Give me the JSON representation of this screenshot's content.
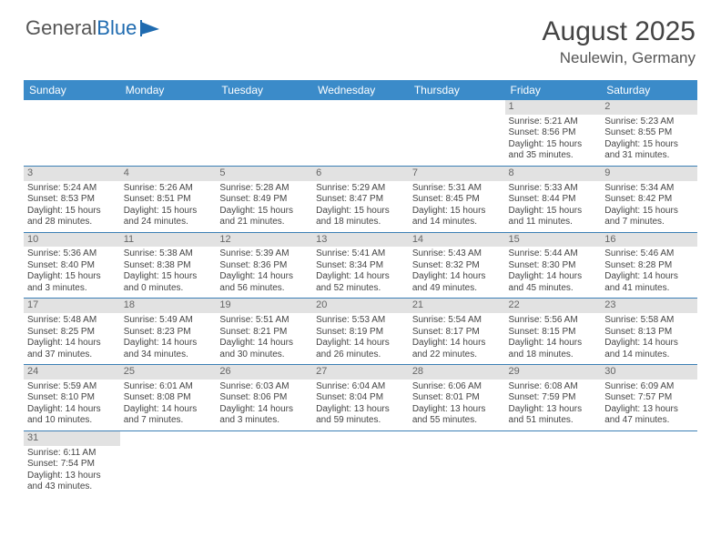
{
  "logo": {
    "part1": "General",
    "part2": "Blue"
  },
  "title": "August 2025",
  "location": "Neulewin, Germany",
  "colors": {
    "header_bg": "#3b8bc9",
    "header_text": "#ffffff",
    "daynum_bg": "#e2e2e2",
    "row_divider": "#3b7fb5",
    "logo_blue": "#1f6bb0"
  },
  "day_headers": [
    "Sunday",
    "Monday",
    "Tuesday",
    "Wednesday",
    "Thursday",
    "Friday",
    "Saturday"
  ],
  "weeks": [
    [
      null,
      null,
      null,
      null,
      null,
      {
        "n": "1",
        "sr": "Sunrise: 5:21 AM",
        "ss": "Sunset: 8:56 PM",
        "d1": "Daylight: 15 hours",
        "d2": "and 35 minutes."
      },
      {
        "n": "2",
        "sr": "Sunrise: 5:23 AM",
        "ss": "Sunset: 8:55 PM",
        "d1": "Daylight: 15 hours",
        "d2": "and 31 minutes."
      }
    ],
    [
      {
        "n": "3",
        "sr": "Sunrise: 5:24 AM",
        "ss": "Sunset: 8:53 PM",
        "d1": "Daylight: 15 hours",
        "d2": "and 28 minutes."
      },
      {
        "n": "4",
        "sr": "Sunrise: 5:26 AM",
        "ss": "Sunset: 8:51 PM",
        "d1": "Daylight: 15 hours",
        "d2": "and 24 minutes."
      },
      {
        "n": "5",
        "sr": "Sunrise: 5:28 AM",
        "ss": "Sunset: 8:49 PM",
        "d1": "Daylight: 15 hours",
        "d2": "and 21 minutes."
      },
      {
        "n": "6",
        "sr": "Sunrise: 5:29 AM",
        "ss": "Sunset: 8:47 PM",
        "d1": "Daylight: 15 hours",
        "d2": "and 18 minutes."
      },
      {
        "n": "7",
        "sr": "Sunrise: 5:31 AM",
        "ss": "Sunset: 8:45 PM",
        "d1": "Daylight: 15 hours",
        "d2": "and 14 minutes."
      },
      {
        "n": "8",
        "sr": "Sunrise: 5:33 AM",
        "ss": "Sunset: 8:44 PM",
        "d1": "Daylight: 15 hours",
        "d2": "and 11 minutes."
      },
      {
        "n": "9",
        "sr": "Sunrise: 5:34 AM",
        "ss": "Sunset: 8:42 PM",
        "d1": "Daylight: 15 hours",
        "d2": "and 7 minutes."
      }
    ],
    [
      {
        "n": "10",
        "sr": "Sunrise: 5:36 AM",
        "ss": "Sunset: 8:40 PM",
        "d1": "Daylight: 15 hours",
        "d2": "and 3 minutes."
      },
      {
        "n": "11",
        "sr": "Sunrise: 5:38 AM",
        "ss": "Sunset: 8:38 PM",
        "d1": "Daylight: 15 hours",
        "d2": "and 0 minutes."
      },
      {
        "n": "12",
        "sr": "Sunrise: 5:39 AM",
        "ss": "Sunset: 8:36 PM",
        "d1": "Daylight: 14 hours",
        "d2": "and 56 minutes."
      },
      {
        "n": "13",
        "sr": "Sunrise: 5:41 AM",
        "ss": "Sunset: 8:34 PM",
        "d1": "Daylight: 14 hours",
        "d2": "and 52 minutes."
      },
      {
        "n": "14",
        "sr": "Sunrise: 5:43 AM",
        "ss": "Sunset: 8:32 PM",
        "d1": "Daylight: 14 hours",
        "d2": "and 49 minutes."
      },
      {
        "n": "15",
        "sr": "Sunrise: 5:44 AM",
        "ss": "Sunset: 8:30 PM",
        "d1": "Daylight: 14 hours",
        "d2": "and 45 minutes."
      },
      {
        "n": "16",
        "sr": "Sunrise: 5:46 AM",
        "ss": "Sunset: 8:28 PM",
        "d1": "Daylight: 14 hours",
        "d2": "and 41 minutes."
      }
    ],
    [
      {
        "n": "17",
        "sr": "Sunrise: 5:48 AM",
        "ss": "Sunset: 8:25 PM",
        "d1": "Daylight: 14 hours",
        "d2": "and 37 minutes."
      },
      {
        "n": "18",
        "sr": "Sunrise: 5:49 AM",
        "ss": "Sunset: 8:23 PM",
        "d1": "Daylight: 14 hours",
        "d2": "and 34 minutes."
      },
      {
        "n": "19",
        "sr": "Sunrise: 5:51 AM",
        "ss": "Sunset: 8:21 PM",
        "d1": "Daylight: 14 hours",
        "d2": "and 30 minutes."
      },
      {
        "n": "20",
        "sr": "Sunrise: 5:53 AM",
        "ss": "Sunset: 8:19 PM",
        "d1": "Daylight: 14 hours",
        "d2": "and 26 minutes."
      },
      {
        "n": "21",
        "sr": "Sunrise: 5:54 AM",
        "ss": "Sunset: 8:17 PM",
        "d1": "Daylight: 14 hours",
        "d2": "and 22 minutes."
      },
      {
        "n": "22",
        "sr": "Sunrise: 5:56 AM",
        "ss": "Sunset: 8:15 PM",
        "d1": "Daylight: 14 hours",
        "d2": "and 18 minutes."
      },
      {
        "n": "23",
        "sr": "Sunrise: 5:58 AM",
        "ss": "Sunset: 8:13 PM",
        "d1": "Daylight: 14 hours",
        "d2": "and 14 minutes."
      }
    ],
    [
      {
        "n": "24",
        "sr": "Sunrise: 5:59 AM",
        "ss": "Sunset: 8:10 PM",
        "d1": "Daylight: 14 hours",
        "d2": "and 10 minutes."
      },
      {
        "n": "25",
        "sr": "Sunrise: 6:01 AM",
        "ss": "Sunset: 8:08 PM",
        "d1": "Daylight: 14 hours",
        "d2": "and 7 minutes."
      },
      {
        "n": "26",
        "sr": "Sunrise: 6:03 AM",
        "ss": "Sunset: 8:06 PM",
        "d1": "Daylight: 14 hours",
        "d2": "and 3 minutes."
      },
      {
        "n": "27",
        "sr": "Sunrise: 6:04 AM",
        "ss": "Sunset: 8:04 PM",
        "d1": "Daylight: 13 hours",
        "d2": "and 59 minutes."
      },
      {
        "n": "28",
        "sr": "Sunrise: 6:06 AM",
        "ss": "Sunset: 8:01 PM",
        "d1": "Daylight: 13 hours",
        "d2": "and 55 minutes."
      },
      {
        "n": "29",
        "sr": "Sunrise: 6:08 AM",
        "ss": "Sunset: 7:59 PM",
        "d1": "Daylight: 13 hours",
        "d2": "and 51 minutes."
      },
      {
        "n": "30",
        "sr": "Sunrise: 6:09 AM",
        "ss": "Sunset: 7:57 PM",
        "d1": "Daylight: 13 hours",
        "d2": "and 47 minutes."
      }
    ],
    [
      {
        "n": "31",
        "sr": "Sunrise: 6:11 AM",
        "ss": "Sunset: 7:54 PM",
        "d1": "Daylight: 13 hours",
        "d2": "and 43 minutes."
      },
      null,
      null,
      null,
      null,
      null,
      null
    ]
  ]
}
